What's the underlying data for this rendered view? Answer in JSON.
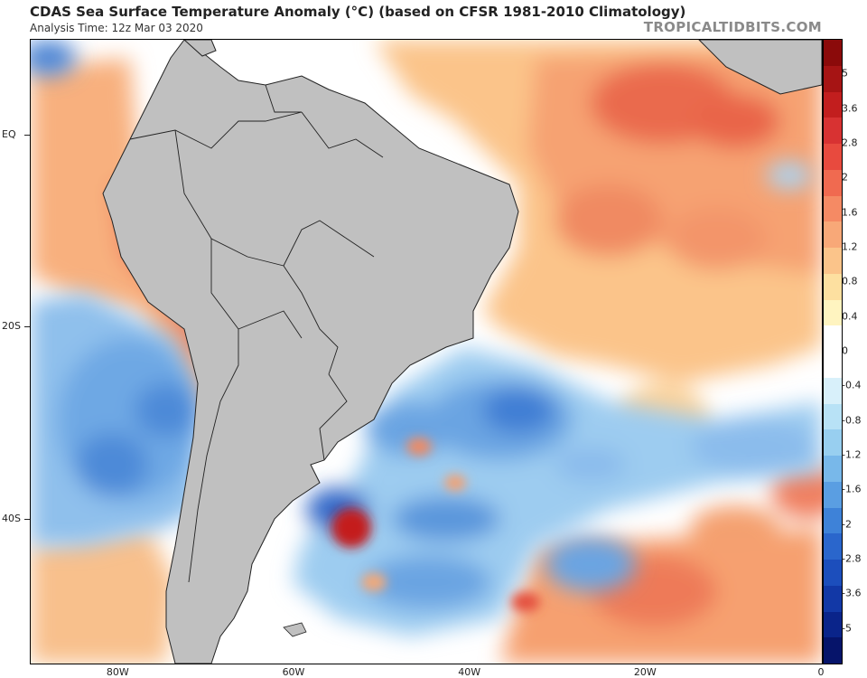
{
  "header": {
    "title": "CDAS Sea Surface Temperature Anomaly (°C) (based on CFSR 1981-2010 Climatology)",
    "subtitle": "Analysis Time: 12z Mar 03 2020",
    "brand": "TROPICALTIDBITS.COM"
  },
  "map": {
    "extent": {
      "lon_min": -90,
      "lon_max": 0,
      "lat_max": 10,
      "lat_min": -55
    },
    "lat_labels": [
      {
        "lat": 0,
        "label": "EQ"
      },
      {
        "lat": -20,
        "label": "20S"
      },
      {
        "lat": -40,
        "label": "40S"
      }
    ],
    "lon_labels": [
      {
        "lon": -80,
        "label": "80W"
      },
      {
        "lon": -60,
        "label": "60W"
      },
      {
        "lon": -40,
        "label": "40W"
      },
      {
        "lon": -20,
        "label": "20W"
      },
      {
        "lon": 0,
        "label": "0"
      }
    ],
    "land_color": "#c0c0c0",
    "ocean_neutral": "#ffffff"
  },
  "colorbar": {
    "labels": [
      "5",
      "3.6",
      "2.8",
      "2",
      "1.6",
      "1.2",
      "0.8",
      "0.4",
      "0",
      "-0.4",
      "-0.8",
      "-1.2",
      "-1.6",
      "-2",
      "-2.8",
      "-3.6",
      "-5"
    ],
    "colors": [
      "#8b0a0a",
      "#a61414",
      "#c21e1e",
      "#d83232",
      "#e84a3e",
      "#f06a50",
      "#f58a64",
      "#f8a878",
      "#fbc48a",
      "#fde0a0",
      "#fff4c0",
      "#ffffff",
      "#ffffff",
      "#d8f0fa",
      "#b8e2f6",
      "#98cff0",
      "#78b8ea",
      "#5a9ee2",
      "#3e82d8",
      "#2a66cc",
      "#1c4ebc",
      "#1238a6",
      "#0a248a",
      "#06146a"
    ]
  }
}
